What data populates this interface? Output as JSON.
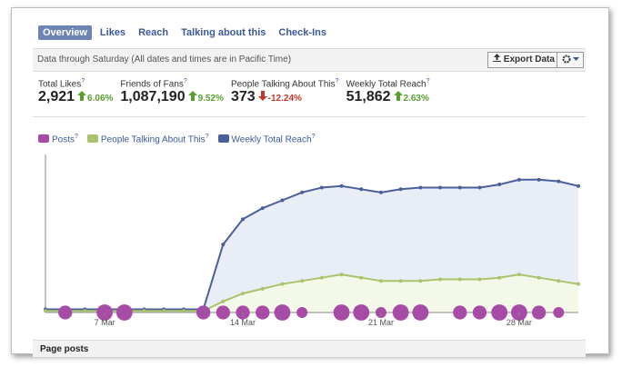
{
  "tabs": [
    "Overview",
    "Likes",
    "Reach",
    "Talking about this",
    "Check-Ins"
  ],
  "active_tab": 0,
  "toolbar": {
    "note": "Data through Saturday (All dates and times are in Pacific Time)",
    "export_button": "Export Data"
  },
  "help_icon": "?",
  "stats": [
    {
      "label": "Total Likes",
      "value": "2,921",
      "change": "6.06%",
      "direction": "up"
    },
    {
      "label": "Friends of Fans",
      "value": "1,087,190",
      "change": "9.52%",
      "direction": "up"
    },
    {
      "label": "People Talking About This",
      "value": "373",
      "change": "-12.24%",
      "direction": "down"
    },
    {
      "label": "Weekly Total Reach",
      "value": "51,862",
      "change": "2.63%",
      "direction": "up"
    }
  ],
  "chart_data": {
    "type": "line",
    "categories": [
      null,
      null,
      null,
      "7 Mar",
      null,
      null,
      null,
      null,
      null,
      null,
      "14 Mar",
      null,
      null,
      null,
      null,
      null,
      null,
      "21 Mar",
      null,
      null,
      null,
      null,
      null,
      null,
      "28 Mar",
      null,
      null,
      null
    ],
    "ylim": [
      0,
      100
    ],
    "series": [
      {
        "name": "Posts",
        "color": "#a64ca6",
        "kind": "bubble",
        "values": [
          null,
          2,
          null,
          3,
          3,
          null,
          null,
          null,
          2,
          2,
          2,
          2,
          3,
          1,
          null,
          3,
          3,
          1,
          3,
          3,
          null,
          2,
          2,
          3,
          3,
          2,
          1,
          null
        ]
      },
      {
        "name": "People Talking About This",
        "color": "#a9c46c",
        "fill": "#f4f8e8",
        "values": [
          1,
          1,
          1,
          1,
          1,
          1,
          1,
          1,
          1,
          7,
          12,
          15,
          18,
          20,
          22,
          24,
          22,
          20,
          20,
          20,
          21,
          21,
          21,
          22,
          24,
          22,
          20,
          18
        ]
      },
      {
        "name": "Weekly Total Reach",
        "color": "#4b5f9b",
        "fill": "#e9edf6",
        "values": [
          2,
          2,
          2,
          2,
          2,
          2,
          2,
          2,
          2,
          43,
          59,
          66,
          71,
          76,
          79,
          80,
          78,
          76,
          78,
          79,
          79,
          79,
          79,
          81,
          84,
          84,
          83,
          80
        ]
      }
    ]
  },
  "section_title": "Page posts"
}
